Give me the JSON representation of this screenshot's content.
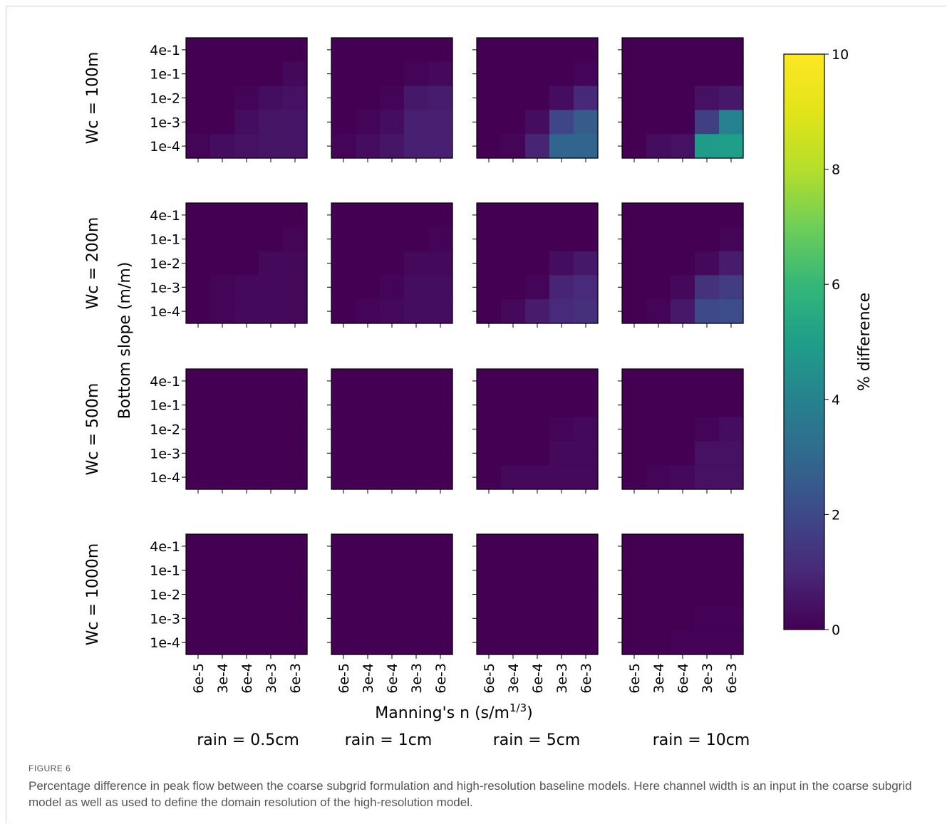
{
  "chart_data": {
    "type": "heatmap",
    "row_titles": [
      "Wc = 100m",
      "Wc = 200m",
      "Wc = 500m",
      "Wc = 1000m"
    ],
    "column_titles": [
      "rain = 0.5cm",
      "rain = 1cm",
      "rain = 5cm",
      "rain = 10cm"
    ],
    "ylabel": "Bottom slope (m/m)",
    "xlabel": "Manning's n (s/m",
    "xlabel_superscript": "1/3",
    "xlabel_close": ")",
    "y_ticks": [
      "4e-1",
      "1e-1",
      "1e-2",
      "1e-3",
      "1e-4"
    ],
    "x_ticks": [
      "6e-5",
      "3e-4",
      "6e-4",
      "3e-3",
      "6e-3"
    ],
    "colorbar": {
      "label": "% difference",
      "range": [
        0,
        10
      ],
      "ticks": [
        "0",
        "2",
        "4",
        "6",
        "8",
        "10"
      ],
      "colormap": "viridis"
    },
    "panels": [
      [
        [
          [
            0,
            0,
            0,
            0,
            0
          ],
          [
            0,
            0,
            0,
            0,
            0.2
          ],
          [
            0,
            0,
            0.1,
            0.3,
            0.4
          ],
          [
            0,
            0,
            0.3,
            0.5,
            0.5
          ],
          [
            0.1,
            0.3,
            0.4,
            0.5,
            0.5
          ]
        ],
        [
          [
            0,
            0,
            0,
            0,
            0
          ],
          [
            0,
            0,
            0,
            0.1,
            0.2
          ],
          [
            0,
            0,
            0.1,
            0.6,
            0.7
          ],
          [
            0,
            0.1,
            0.3,
            0.8,
            0.8
          ],
          [
            0.1,
            0.3,
            0.5,
            0.8,
            0.8
          ]
        ],
        [
          [
            0,
            0,
            0,
            0,
            0
          ],
          [
            0,
            0,
            0,
            0,
            0.1
          ],
          [
            0,
            0,
            0,
            0.3,
            1.0
          ],
          [
            0,
            0,
            0.3,
            1.9,
            2.6
          ],
          [
            0,
            0.1,
            0.9,
            2.9,
            2.9
          ]
        ],
        [
          [
            0,
            0,
            0,
            0,
            0
          ],
          [
            0,
            0,
            0,
            0,
            0
          ],
          [
            0,
            0,
            0,
            0.4,
            0.6
          ],
          [
            0,
            0,
            0,
            1.7,
            4.0
          ],
          [
            0,
            0.3,
            0.4,
            4.9,
            5.0
          ]
        ]
      ],
      [
        [
          [
            0,
            0,
            0,
            0,
            0
          ],
          [
            0,
            0,
            0,
            0,
            0.1
          ],
          [
            0,
            0,
            0,
            0.2,
            0.2
          ],
          [
            0,
            0.1,
            0.2,
            0.2,
            0.2
          ],
          [
            0,
            0.1,
            0.2,
            0.2,
            0.2
          ]
        ],
        [
          [
            0,
            0,
            0,
            0,
            0
          ],
          [
            0,
            0,
            0,
            0,
            0.1
          ],
          [
            0,
            0,
            0,
            0.2,
            0.2
          ],
          [
            0,
            0,
            0.1,
            0.3,
            0.3
          ],
          [
            0,
            0.1,
            0.2,
            0.3,
            0.3
          ]
        ],
        [
          [
            0,
            0,
            0,
            0,
            0
          ],
          [
            0,
            0,
            0,
            0,
            0
          ],
          [
            0,
            0,
            0,
            0.3,
            0.6
          ],
          [
            0,
            0,
            0.1,
            0.9,
            1.1
          ],
          [
            0,
            0.2,
            0.7,
            1.1,
            1.2
          ]
        ],
        [
          [
            0,
            0,
            0,
            0,
            0
          ],
          [
            0,
            0,
            0,
            0,
            0.1
          ],
          [
            0,
            0,
            0,
            0.2,
            0.7
          ],
          [
            0,
            0,
            0.2,
            1.3,
            1.6
          ],
          [
            0,
            0.1,
            0.6,
            2.0,
            2.1
          ]
        ]
      ],
      [
        [
          [
            0,
            0,
            0,
            0,
            0
          ],
          [
            0,
            0,
            0,
            0,
            0
          ],
          [
            0,
            0,
            0,
            0,
            0
          ],
          [
            0,
            0,
            0,
            0,
            0
          ],
          [
            0,
            0,
            0,
            0,
            0
          ]
        ],
        [
          [
            0,
            0,
            0,
            0,
            0
          ],
          [
            0,
            0,
            0,
            0,
            0
          ],
          [
            0,
            0,
            0,
            0,
            0
          ],
          [
            0,
            0,
            0,
            0,
            0
          ],
          [
            0,
            0,
            0,
            0,
            0
          ]
        ],
        [
          [
            0,
            0,
            0,
            0,
            0
          ],
          [
            0,
            0,
            0,
            0,
            0
          ],
          [
            0,
            0,
            0,
            0.1,
            0.2
          ],
          [
            0,
            0,
            0,
            0.2,
            0.2
          ],
          [
            0,
            0.2,
            0.2,
            0.2,
            0.2
          ]
        ],
        [
          [
            0,
            0,
            0,
            0,
            0
          ],
          [
            0,
            0,
            0,
            0,
            0
          ],
          [
            0,
            0,
            0,
            0.1,
            0.3
          ],
          [
            0,
            0,
            0,
            0.4,
            0.4
          ],
          [
            0,
            0.1,
            0.2,
            0.4,
            0.4
          ]
        ]
      ],
      [
        [
          [
            0,
            0,
            0,
            0,
            0
          ],
          [
            0,
            0,
            0,
            0,
            0
          ],
          [
            0,
            0,
            0,
            0,
            0
          ],
          [
            0,
            0,
            0,
            0,
            0
          ],
          [
            0,
            0,
            0,
            0,
            0
          ]
        ],
        [
          [
            0,
            0,
            0,
            0,
            0
          ],
          [
            0,
            0,
            0,
            0,
            0
          ],
          [
            0,
            0,
            0,
            0,
            0
          ],
          [
            0,
            0,
            0,
            0,
            0
          ],
          [
            0,
            0,
            0,
            0,
            0
          ]
        ],
        [
          [
            0,
            0,
            0,
            0,
            0
          ],
          [
            0,
            0,
            0,
            0,
            0
          ],
          [
            0,
            0,
            0,
            0,
            0
          ],
          [
            0,
            0,
            0,
            0,
            0
          ],
          [
            0,
            0,
            0,
            0,
            0
          ]
        ],
        [
          [
            0,
            0,
            0,
            0,
            0
          ],
          [
            0,
            0,
            0,
            0,
            0
          ],
          [
            0,
            0,
            0,
            0,
            0
          ],
          [
            0,
            0,
            0,
            0.05,
            0.05
          ],
          [
            0,
            0,
            0.05,
            0.05,
            0.05
          ]
        ]
      ]
    ]
  },
  "caption": {
    "label": "FIGURE 6",
    "text": "Percentage difference in peak flow between the coarse subgrid formulation and high-resolution baseline models. Here channel width is an input in the coarse subgrid model as well as used to define the domain resolution of the high-resolution model."
  }
}
